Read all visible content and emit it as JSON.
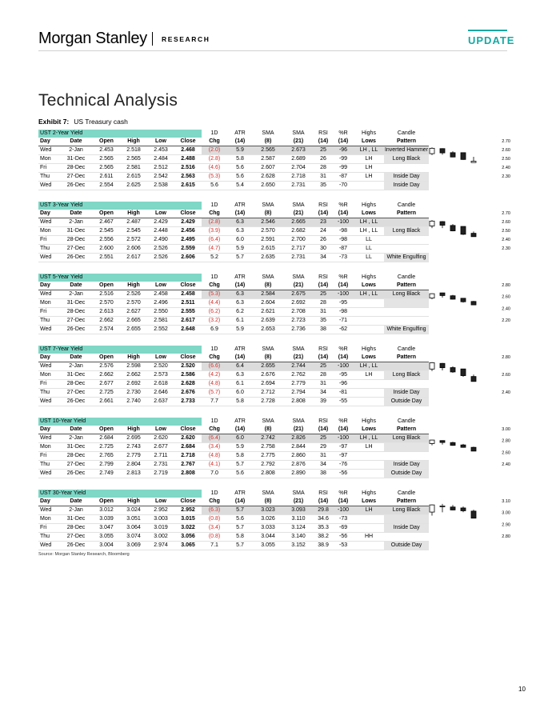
{
  "header": {
    "brand": "Morgan Stanley",
    "section": "RESEARCH",
    "badge": "UPDATE"
  },
  "title": "Technical Analysis",
  "exhibit": {
    "label": "Exhibit 7:",
    "caption": "US Treasury cash"
  },
  "columns": {
    "row1": [
      "",
      "",
      "",
      "",
      "",
      "",
      "1D",
      "ATR",
      "SMA",
      "SMA",
      "RSI",
      "%R",
      "Highs",
      "Candle"
    ],
    "row2": [
      "Day",
      "Date",
      "Open",
      "High",
      "Low",
      "Close",
      "Chg",
      "(14)",
      "(8)",
      "(21)",
      "(14)",
      "(14)",
      "Lows",
      "Pattern"
    ]
  },
  "colors": {
    "teal": "#7fd7c6",
    "negative": "#d0302b",
    "badge": "#17a9a3",
    "grey_cell": "#e4e4e4"
  },
  "tables": [
    {
      "name": "UST 2-Year Yield",
      "axis": [
        "2.70",
        "2.60",
        "2.50",
        "2.40",
        "2.30"
      ],
      "ylim": [
        2.3,
        2.7
      ],
      "rows": [
        {
          "day": "Wed",
          "date": "2-Jan",
          "open": "2.453",
          "high": "2.518",
          "low": "2.453",
          "close": "2.468",
          "chg": "(2.0)",
          "atr": "5.9",
          "sma8": "2.565",
          "sma21": "2.673",
          "rsi": "25",
          "pr": "-96",
          "hl": "LH , LL",
          "pattern": "Inverted Hammer"
        },
        {
          "day": "Mon",
          "date": "31-Dec",
          "open": "2.565",
          "high": "2.565",
          "low": "2.484",
          "close": "2.488",
          "chg": "(2.8)",
          "atr": "5.8",
          "sma8": "2.587",
          "sma21": "2.689",
          "rsi": "26",
          "pr": "-99",
          "hl": "LH",
          "pattern": "Long Black"
        },
        {
          "day": "Fri",
          "date": "28-Dec",
          "open": "2.565",
          "high": "2.581",
          "low": "2.512",
          "close": "2.516",
          "chg": "(4.6)",
          "atr": "5.6",
          "sma8": "2.607",
          "sma21": "2.704",
          "rsi": "28",
          "pr": "-99",
          "hl": "LH",
          "pattern": ""
        },
        {
          "day": "Thu",
          "date": "27-Dec",
          "open": "2.611",
          "high": "2.615",
          "low": "2.542",
          "close": "2.563",
          "chg": "(5.3)",
          "atr": "5.6",
          "sma8": "2.628",
          "sma21": "2.718",
          "rsi": "31",
          "pr": "-87",
          "hl": "LH",
          "pattern": "Inside Day"
        },
        {
          "day": "Wed",
          "date": "26-Dec",
          "open": "2.554",
          "high": "2.625",
          "low": "2.538",
          "close": "2.615",
          "chg": "5.6",
          "atr": "5.4",
          "sma8": "2.650",
          "sma21": "2.731",
          "rsi": "35",
          "pr": "-70",
          "hl": "",
          "pattern": "Inside Day"
        }
      ]
    },
    {
      "name": "UST 3-Year Yield",
      "axis": [
        "2.70",
        "2.60",
        "2.50",
        "2.40",
        "2.30"
      ],
      "ylim": [
        2.3,
        2.7
      ],
      "rows": [
        {
          "day": "Wed",
          "date": "2-Jan",
          "open": "2.467",
          "high": "2.487",
          "low": "2.429",
          "close": "2.429",
          "chg": "(2.8)",
          "atr": "6.3",
          "sma8": "2.546",
          "sma21": "2.665",
          "rsi": "23",
          "pr": "-100",
          "hl": "LH , LL",
          "pattern": ""
        },
        {
          "day": "Mon",
          "date": "31-Dec",
          "open": "2.545",
          "high": "2.545",
          "low": "2.448",
          "close": "2.456",
          "chg": "(3.9)",
          "atr": "6.3",
          "sma8": "2.570",
          "sma21": "2.682",
          "rsi": "24",
          "pr": "-98",
          "hl": "LH , LL",
          "pattern": "Long Black"
        },
        {
          "day": "Fri",
          "date": "28-Dec",
          "open": "2.556",
          "high": "2.572",
          "low": "2.490",
          "close": "2.495",
          "chg": "(6.4)",
          "atr": "6.0",
          "sma8": "2.591",
          "sma21": "2.700",
          "rsi": "26",
          "pr": "-98",
          "hl": "LL",
          "pattern": ""
        },
        {
          "day": "Thu",
          "date": "27-Dec",
          "open": "2.600",
          "high": "2.606",
          "low": "2.526",
          "close": "2.559",
          "chg": "(4.7)",
          "atr": "5.9",
          "sma8": "2.615",
          "sma21": "2.717",
          "rsi": "30",
          "pr": "-87",
          "hl": "LL",
          "pattern": ""
        },
        {
          "day": "Wed",
          "date": "26-Dec",
          "open": "2.551",
          "high": "2.617",
          "low": "2.526",
          "close": "2.606",
          "chg": "5.2",
          "atr": "5.7",
          "sma8": "2.635",
          "sma21": "2.731",
          "rsi": "34",
          "pr": "-73",
          "hl": "LL",
          "pattern": "White Engulfing"
        }
      ]
    },
    {
      "name": "UST 5-Year Yield",
      "axis": [
        "2.80",
        "2.60",
        "2.40",
        "2.20"
      ],
      "ylim": [
        2.2,
        2.8
      ],
      "rows": [
        {
          "day": "Wed",
          "date": "2-Jan",
          "open": "2.516",
          "high": "2.526",
          "low": "2.458",
          "close": "2.458",
          "chg": "(5.3)",
          "atr": "6.3",
          "sma8": "2.584",
          "sma21": "2.675",
          "rsi": "25",
          "pr": "-100",
          "hl": "LH , LL",
          "pattern": "Long Black"
        },
        {
          "day": "Mon",
          "date": "31-Dec",
          "open": "2.570",
          "high": "2.570",
          "low": "2.496",
          "close": "2.511",
          "chg": "(4.4)",
          "atr": "6.3",
          "sma8": "2.604",
          "sma21": "2.692",
          "rsi": "28",
          "pr": "-95",
          "hl": "",
          "pattern": ""
        },
        {
          "day": "Fri",
          "date": "28-Dec",
          "open": "2.613",
          "high": "2.627",
          "low": "2.550",
          "close": "2.555",
          "chg": "(6.2)",
          "atr": "6.2",
          "sma8": "2.621",
          "sma21": "2.708",
          "rsi": "31",
          "pr": "-98",
          "hl": "",
          "pattern": ""
        },
        {
          "day": "Thu",
          "date": "27-Dec",
          "open": "2.662",
          "high": "2.665",
          "low": "2.581",
          "close": "2.617",
          "chg": "(3.2)",
          "atr": "6.1",
          "sma8": "2.639",
          "sma21": "2.723",
          "rsi": "35",
          "pr": "-71",
          "hl": "",
          "pattern": ""
        },
        {
          "day": "Wed",
          "date": "26-Dec",
          "open": "2.574",
          "high": "2.655",
          "low": "2.552",
          "close": "2.648",
          "chg": "6.9",
          "atr": "5.9",
          "sma8": "2.653",
          "sma21": "2.736",
          "rsi": "38",
          "pr": "-62",
          "hl": "",
          "pattern": "White Engulfing"
        }
      ]
    },
    {
      "name": "UST 7-Year Yield",
      "axis": [
        "2.80",
        "2.60",
        "2.40"
      ],
      "ylim": [
        2.4,
        2.8
      ],
      "rows": [
        {
          "day": "Wed",
          "date": "2-Jan",
          "open": "2.576",
          "high": "2.598",
          "low": "2.520",
          "close": "2.520",
          "chg": "(6.6)",
          "atr": "6.4",
          "sma8": "2.655",
          "sma21": "2.744",
          "rsi": "25",
          "pr": "-100",
          "hl": "LH , LL",
          "pattern": ""
        },
        {
          "day": "Mon",
          "date": "31-Dec",
          "open": "2.662",
          "high": "2.662",
          "low": "2.573",
          "close": "2.586",
          "chg": "(4.2)",
          "atr": "6.3",
          "sma8": "2.676",
          "sma21": "2.762",
          "rsi": "28",
          "pr": "-95",
          "hl": "LH",
          "pattern": "Long Black"
        },
        {
          "day": "Fri",
          "date": "28-Dec",
          "open": "2.677",
          "high": "2.692",
          "low": "2.618",
          "close": "2.628",
          "chg": "(4.8)",
          "atr": "6.1",
          "sma8": "2.694",
          "sma21": "2.779",
          "rsi": "31",
          "pr": "-96",
          "hl": "",
          "pattern": ""
        },
        {
          "day": "Thu",
          "date": "27-Dec",
          "open": "2.725",
          "high": "2.730",
          "low": "2.646",
          "close": "2.676",
          "chg": "(5.7)",
          "atr": "6.0",
          "sma8": "2.712",
          "sma21": "2.794",
          "rsi": "34",
          "pr": "-81",
          "hl": "",
          "pattern": "Inside Day"
        },
        {
          "day": "Wed",
          "date": "26-Dec",
          "open": "2.661",
          "high": "2.740",
          "low": "2.637",
          "close": "2.733",
          "chg": "7.7",
          "atr": "5.8",
          "sma8": "2.728",
          "sma21": "2.808",
          "rsi": "39",
          "pr": "-55",
          "hl": "",
          "pattern": "Outside Day"
        }
      ]
    },
    {
      "name": "UST 10-Year Yield",
      "axis": [
        "3.00",
        "2.80",
        "2.60",
        "2.40"
      ],
      "ylim": [
        2.4,
        3.0
      ],
      "rows": [
        {
          "day": "Wed",
          "date": "2-Jan",
          "open": "2.684",
          "high": "2.695",
          "low": "2.620",
          "close": "2.620",
          "chg": "(6.4)",
          "atr": "6.0",
          "sma8": "2.742",
          "sma21": "2.826",
          "rsi": "25",
          "pr": "-100",
          "hl": "LH , LL",
          "pattern": "Long Black"
        },
        {
          "day": "Mon",
          "date": "31-Dec",
          "open": "2.725",
          "high": "2.743",
          "low": "2.677",
          "close": "2.684",
          "chg": "(3.4)",
          "atr": "5.9",
          "sma8": "2.758",
          "sma21": "2.844",
          "rsi": "29",
          "pr": "-97",
          "hl": "LH",
          "pattern": ""
        },
        {
          "day": "Fri",
          "date": "28-Dec",
          "open": "2.765",
          "high": "2.779",
          "low": "2.711",
          "close": "2.718",
          "chg": "(4.8)",
          "atr": "5.8",
          "sma8": "2.775",
          "sma21": "2.860",
          "rsi": "31",
          "pr": "-97",
          "hl": "",
          "pattern": ""
        },
        {
          "day": "Thu",
          "date": "27-Dec",
          "open": "2.799",
          "high": "2.804",
          "low": "2.731",
          "close": "2.767",
          "chg": "(4.1)",
          "atr": "5.7",
          "sma8": "2.792",
          "sma21": "2.876",
          "rsi": "34",
          "pr": "-76",
          "hl": "",
          "pattern": "Inside Day"
        },
        {
          "day": "Wed",
          "date": "26-Dec",
          "open": "2.749",
          "high": "2.813",
          "low": "2.719",
          "close": "2.808",
          "chg": "7.0",
          "atr": "5.6",
          "sma8": "2.808",
          "sma21": "2.890",
          "rsi": "38",
          "pr": "-56",
          "hl": "",
          "pattern": "Outside Day"
        }
      ]
    },
    {
      "name": "UST 30-Year Yield",
      "axis": [
        "3.10",
        "3.00",
        "2.90",
        "2.80"
      ],
      "ylim": [
        2.8,
        3.1
      ],
      "rows": [
        {
          "day": "Wed",
          "date": "2-Jan",
          "open": "3.012",
          "high": "3.024",
          "low": "2.952",
          "close": "2.952",
          "chg": "(6.3)",
          "atr": "5.7",
          "sma8": "3.023",
          "sma21": "3.093",
          "rsi": "29.8",
          "pr": "-100",
          "hl": "LH",
          "pattern": "Long Black"
        },
        {
          "day": "Mon",
          "date": "31-Dec",
          "open": "3.039",
          "high": "3.051",
          "low": "3.003",
          "close": "3.015",
          "chg": "(0.8)",
          "atr": "5.6",
          "sma8": "3.026",
          "sma21": "3.110",
          "rsi": "34.6",
          "pr": "-73",
          "hl": "",
          "pattern": ""
        },
        {
          "day": "Fri",
          "date": "28-Dec",
          "open": "3.047",
          "high": "3.064",
          "low": "3.019",
          "close": "3.022",
          "chg": "(3.4)",
          "atr": "5.7",
          "sma8": "3.033",
          "sma21": "3.124",
          "rsi": "35.3",
          "pr": "-69",
          "hl": "",
          "pattern": "Inside Day"
        },
        {
          "day": "Thu",
          "date": "27-Dec",
          "open": "3.055",
          "high": "3.074",
          "low": "3.002",
          "close": "3.056",
          "chg": "(0.8)",
          "atr": "5.8",
          "sma8": "3.044",
          "sma21": "3.140",
          "rsi": "38.2",
          "pr": "-56",
          "hl": "HH",
          "pattern": ""
        },
        {
          "day": "Wed",
          "date": "26-Dec",
          "open": "3.004",
          "high": "3.069",
          "low": "2.974",
          "close": "3.065",
          "chg": "7.1",
          "atr": "5.7",
          "sma8": "3.055",
          "sma21": "3.152",
          "rsi": "38.9",
          "pr": "-53",
          "hl": "",
          "pattern": "Outside Day"
        }
      ]
    }
  ],
  "source": "Source: Morgan Stanley Research, Bloomberg",
  "page_number": "10"
}
